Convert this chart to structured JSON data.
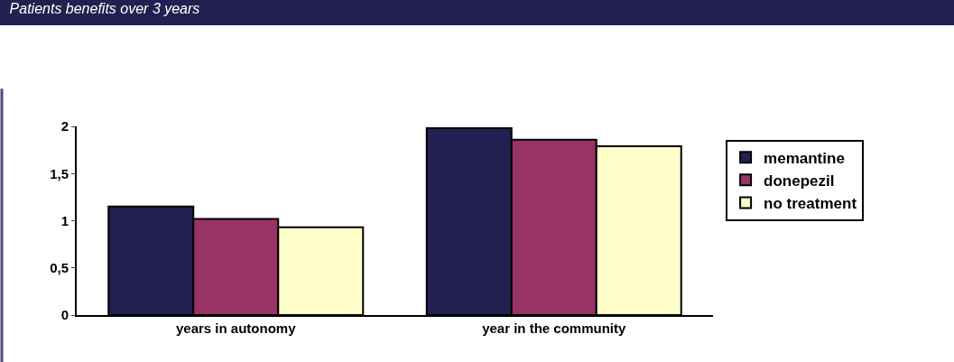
{
  "chart_data": {
    "type": "bar",
    "title": "Patients benefits over 3 years",
    "categories": [
      "years in autonomy",
      "year in the community"
    ],
    "series": [
      {
        "name": "memantine",
        "color": "#212050",
        "values": [
          1.15,
          1.98
        ]
      },
      {
        "name": "donepezil",
        "color": "#993366",
        "values": [
          1.02,
          1.86
        ]
      },
      {
        "name": "no treatment",
        "color": "#ffffcc",
        "values": [
          0.93,
          1.79
        ]
      }
    ],
    "ylim": [
      0,
      2
    ],
    "yticks": [
      0,
      {
        "value": 0.5,
        "label": "0,5"
      },
      1,
      {
        "value": 1.5,
        "label": "1,5"
      },
      2
    ],
    "legend": "right"
  }
}
